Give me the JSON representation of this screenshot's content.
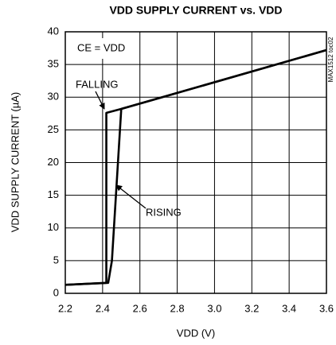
{
  "chart_data": {
    "type": "line",
    "title": "VDD SUPPLY CURRENT vs. VDD",
    "x_label": "VDD (V)",
    "y_label": "VDD SUPPLY CURRENT (µA)",
    "xlim": [
      2.2,
      3.6
    ],
    "xticks": [
      2.2,
      2.4,
      2.6,
      2.8,
      {
        "value": 3,
        "label": "3.0"
      },
      3.2,
      3.4,
      3.6
    ],
    "ylim": [
      0,
      40
    ],
    "yticks": [
      0,
      5,
      10,
      15,
      20,
      25,
      30,
      35,
      40
    ],
    "grid": true,
    "series": [
      {
        "color": "#000000",
        "x": [
          2.2,
          2.42,
          2.42,
          2.5,
          3.6
        ],
        "values": [
          1.3,
          1.6,
          27.6,
          28.2,
          37.2
        ]
      },
      {
        "color": "#000000",
        "x": [
          2.2,
          2.43,
          2.45,
          2.5,
          3.6
        ],
        "values": [
          1.3,
          1.6,
          5,
          28.2,
          37.2
        ]
      }
    ],
    "annotations": [
      "CE = VDD",
      "FALLING",
      "RISING",
      "MAX1512 toc02"
    ]
  }
}
